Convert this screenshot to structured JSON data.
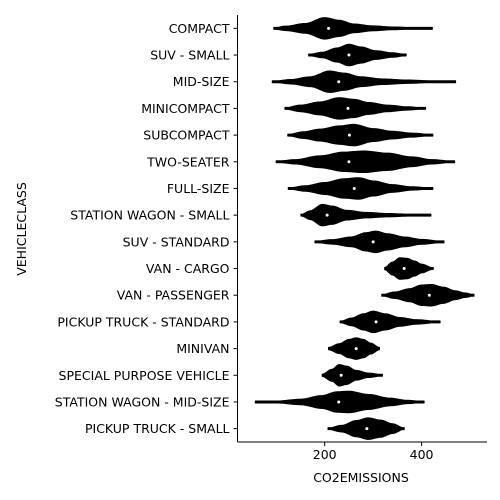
{
  "chart_data": {
    "type": "violin",
    "orientation": "horizontal",
    "xlabel": "CO2EMISSIONS",
    "ylabel": "VEHICLECLASS",
    "xlim": [
      20,
      535
    ],
    "xticks": [
      200,
      400
    ],
    "tick_labels": {
      "x": [
        "200",
        "400"
      ]
    },
    "grid": false,
    "violin_color": "#000000",
    "median_color": "#ffffff",
    "categories": [
      "COMPACT",
      "SUV - SMALL",
      "MID-SIZE",
      "MINICOMPACT",
      "SUBCOMPACT",
      "TWO-SEATER",
      "FULL-SIZE",
      "STATION WAGON - SMALL",
      "SUV - STANDARD",
      "VAN - CARGO",
      "VAN - PASSENGER",
      "PICKUP TRUCK - STANDARD",
      "MINIVAN",
      "SPECIAL PURPOSE VEHICLE",
      "STATION WAGON - MID-SIZE",
      "PICKUP TRUCK - SMALL"
    ],
    "series": [
      {
        "min": 95,
        "max": 422,
        "median": 208,
        "density": [
          [
            95,
            0.05
          ],
          [
            120,
            0.2
          ],
          [
            160,
            0.45
          ],
          [
            200,
            1.0
          ],
          [
            230,
            0.75
          ],
          [
            260,
            0.4
          ],
          [
            300,
            0.22
          ],
          [
            340,
            0.12
          ],
          [
            380,
            0.07
          ],
          [
            422,
            0.03
          ]
        ]
      },
      {
        "min": 167,
        "max": 368,
        "median": 250,
        "density": [
          [
            167,
            0.05
          ],
          [
            195,
            0.25
          ],
          [
            225,
            0.65
          ],
          [
            250,
            1.0
          ],
          [
            275,
            0.75
          ],
          [
            305,
            0.4
          ],
          [
            340,
            0.2
          ],
          [
            368,
            0.05
          ]
        ]
      },
      {
        "min": 92,
        "max": 470,
        "median": 229,
        "density": [
          [
            92,
            0.03
          ],
          [
            130,
            0.2
          ],
          [
            170,
            0.45
          ],
          [
            210,
            1.0
          ],
          [
            240,
            0.8
          ],
          [
            275,
            0.45
          ],
          [
            320,
            0.25
          ],
          [
            370,
            0.15
          ],
          [
            420,
            0.08
          ],
          [
            470,
            0.02
          ]
        ]
      },
      {
        "min": 118,
        "max": 408,
        "median": 248,
        "density": [
          [
            118,
            0.05
          ],
          [
            150,
            0.3
          ],
          [
            190,
            0.6
          ],
          [
            230,
            1.0
          ],
          [
            260,
            0.85
          ],
          [
            290,
            0.55
          ],
          [
            330,
            0.3
          ],
          [
            370,
            0.15
          ],
          [
            408,
            0.03
          ]
        ]
      },
      {
        "min": 124,
        "max": 423,
        "median": 251,
        "density": [
          [
            124,
            0.05
          ],
          [
            155,
            0.3
          ],
          [
            190,
            0.55
          ],
          [
            230,
            0.85
          ],
          [
            260,
            1.0
          ],
          [
            300,
            0.6
          ],
          [
            340,
            0.35
          ],
          [
            380,
            0.18
          ],
          [
            423,
            0.04
          ]
        ]
      },
      {
        "min": 100,
        "max": 468,
        "median": 250,
        "density": [
          [
            100,
            0.03
          ],
          [
            140,
            0.2
          ],
          [
            190,
            0.55
          ],
          [
            240,
            0.9
          ],
          [
            280,
            1.0
          ],
          [
            330,
            0.8
          ],
          [
            380,
            0.45
          ],
          [
            420,
            0.2
          ],
          [
            468,
            0.03
          ]
        ]
      },
      {
        "min": 125,
        "max": 423,
        "median": 261,
        "density": [
          [
            125,
            0.04
          ],
          [
            160,
            0.25
          ],
          [
            200,
            0.55
          ],
          [
            240,
            0.9
          ],
          [
            270,
            1.0
          ],
          [
            300,
            0.7
          ],
          [
            340,
            0.35
          ],
          [
            380,
            0.15
          ],
          [
            423,
            0.03
          ]
        ]
      },
      {
        "min": 151,
        "max": 419,
        "median": 205,
        "density": [
          [
            151,
            0.05
          ],
          [
            170,
            0.4
          ],
          [
            195,
            1.0
          ],
          [
            215,
            0.85
          ],
          [
            245,
            0.45
          ],
          [
            285,
            0.25
          ],
          [
            330,
            0.15
          ],
          [
            375,
            0.08
          ],
          [
            419,
            0.03
          ]
        ]
      },
      {
        "min": 180,
        "max": 446,
        "median": 300,
        "density": [
          [
            180,
            0.05
          ],
          [
            215,
            0.2
          ],
          [
            255,
            0.45
          ],
          [
            285,
            0.85
          ],
          [
            305,
            1.0
          ],
          [
            330,
            0.75
          ],
          [
            365,
            0.45
          ],
          [
            400,
            0.22
          ],
          [
            446,
            0.03
          ]
        ]
      },
      {
        "min": 324,
        "max": 424,
        "median": 364,
        "density": [
          [
            324,
            0.1
          ],
          [
            340,
            0.6
          ],
          [
            355,
            1.0
          ],
          [
            370,
            0.95
          ],
          [
            385,
            0.7
          ],
          [
            400,
            0.4
          ],
          [
            424,
            0.05
          ]
        ]
      },
      {
        "min": 318,
        "max": 508,
        "median": 416,
        "density": [
          [
            318,
            0.05
          ],
          [
            345,
            0.3
          ],
          [
            375,
            0.6
          ],
          [
            400,
            0.95
          ],
          [
            420,
            1.0
          ],
          [
            445,
            0.75
          ],
          [
            470,
            0.4
          ],
          [
            490,
            0.2
          ],
          [
            508,
            0.05
          ]
        ]
      },
      {
        "min": 232,
        "max": 438,
        "median": 306,
        "density": [
          [
            232,
            0.05
          ],
          [
            255,
            0.35
          ],
          [
            280,
            0.75
          ],
          [
            300,
            1.0
          ],
          [
            325,
            0.75
          ],
          [
            355,
            0.4
          ],
          [
            390,
            0.2
          ],
          [
            438,
            0.03
          ]
        ]
      },
      {
        "min": 208,
        "max": 313,
        "median": 265,
        "density": [
          [
            208,
            0.1
          ],
          [
            230,
            0.45
          ],
          [
            250,
            0.85
          ],
          [
            265,
            1.0
          ],
          [
            280,
            0.85
          ],
          [
            295,
            0.5
          ],
          [
            313,
            0.1
          ]
        ]
      },
      {
        "min": 195,
        "max": 319,
        "median": 234,
        "density": [
          [
            195,
            0.1
          ],
          [
            215,
            0.55
          ],
          [
            230,
            1.0
          ],
          [
            245,
            0.85
          ],
          [
            265,
            0.45
          ],
          [
            290,
            0.2
          ],
          [
            319,
            0.05
          ]
        ]
      },
      {
        "min": 57,
        "max": 405,
        "median": 229,
        "density": [
          [
            57,
            0.02
          ],
          [
            100,
            0.08
          ],
          [
            150,
            0.25
          ],
          [
            195,
            0.6
          ],
          [
            225,
            0.95
          ],
          [
            250,
            1.0
          ],
          [
            290,
            0.7
          ],
          [
            335,
            0.35
          ],
          [
            370,
            0.15
          ],
          [
            405,
            0.03
          ]
        ]
      },
      {
        "min": 207,
        "max": 364,
        "median": 287,
        "density": [
          [
            207,
            0.05
          ],
          [
            235,
            0.3
          ],
          [
            265,
            0.75
          ],
          [
            290,
            1.0
          ],
          [
            315,
            0.8
          ],
          [
            340,
            0.45
          ],
          [
            364,
            0.05
          ]
        ]
      }
    ]
  }
}
